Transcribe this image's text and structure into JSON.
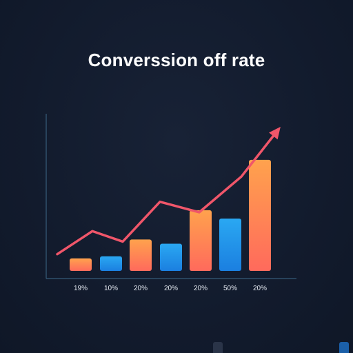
{
  "title": "Converssion off rate",
  "chart_data": {
    "type": "bar",
    "title": "Converssion off rate",
    "categories": [
      "19%",
      "10%",
      "20%",
      "20%",
      "20%",
      "50%",
      "20%"
    ],
    "values": [
      6,
      7,
      15,
      13,
      29,
      25,
      53
    ],
    "ylim": [
      0,
      75
    ],
    "bar_colors": [
      [
        "#ffa24d",
        "#ff6a5c"
      ],
      [
        "#2aa8f2",
        "#1b7fe0"
      ],
      [
        "#ffa24d",
        "#ff6a5c"
      ],
      [
        "#2aa8f2",
        "#1b7fe0"
      ],
      [
        "#ffa24d",
        "#ff6a5c"
      ],
      [
        "#2aa8f2",
        "#1b7fe0"
      ],
      [
        "#ffa24d",
        "#ff6a5c"
      ]
    ],
    "trend_line": {
      "color": "#f0566a",
      "values": [
        8,
        19,
        14,
        33,
        28,
        45,
        68
      ],
      "arrow": true
    },
    "axis_color": "#3d6a8a",
    "grid": false,
    "legend": "none"
  }
}
